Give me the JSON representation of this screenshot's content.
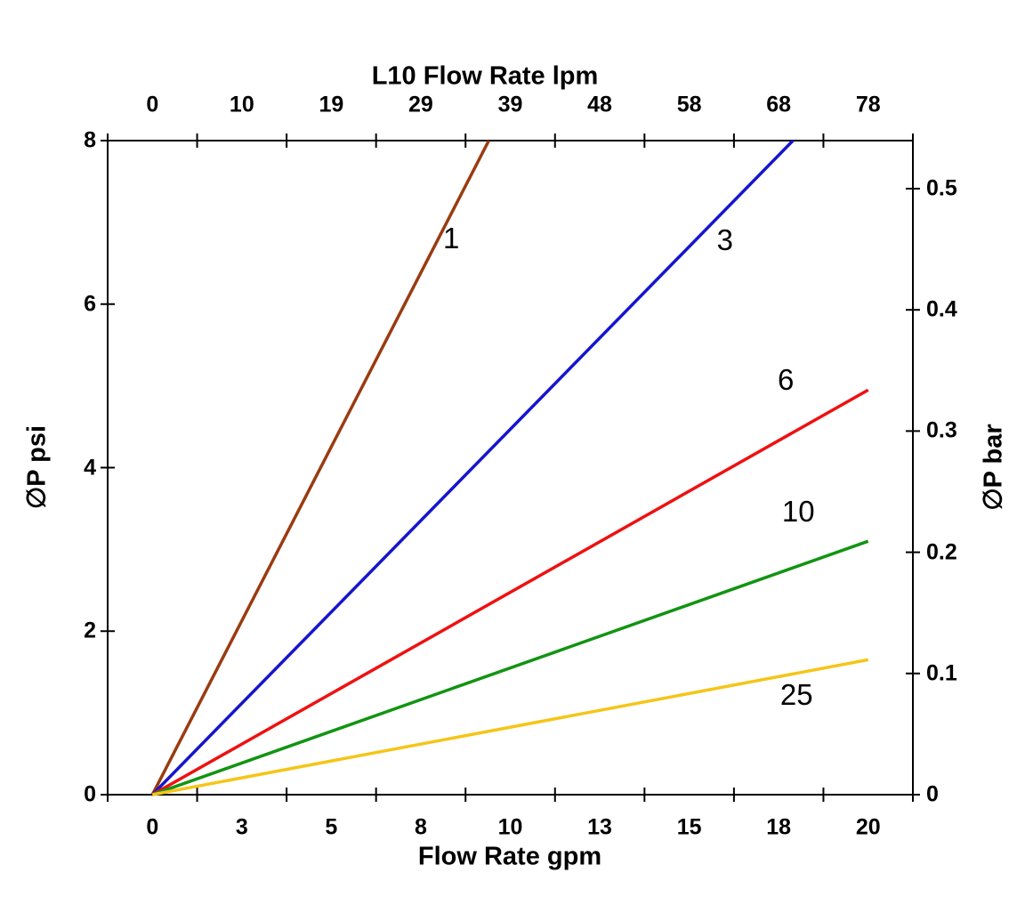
{
  "chart_data": {
    "type": "line",
    "description": "Pressure drop versus flow rate curves for five filter element micron ratings",
    "grid": false,
    "legend_position": "labels-on-lines",
    "top_axis": {
      "title": "L10 Flow Rate lpm",
      "unit": "lpm",
      "tick_labels": [
        "0",
        "10",
        "19",
        "29",
        "39",
        "48",
        "58",
        "68",
        "78"
      ]
    },
    "bottom_axis": {
      "title": "Flow Rate gpm",
      "unit": "gpm",
      "tick_labels": [
        "0",
        "3",
        "5",
        "8",
        "10",
        "13",
        "15",
        "18",
        "20"
      ],
      "tick_values_gpm": [
        0,
        2.5,
        5,
        7.5,
        10,
        12.5,
        15,
        17.5,
        20
      ],
      "range_gpm": [
        0,
        20
      ]
    },
    "left_axis": {
      "title": "∅P psi",
      "unit": "psi",
      "tick_labels": [
        "0",
        "2",
        "4",
        "6",
        "8"
      ],
      "tick_values": [
        0,
        2,
        4,
        6,
        8
      ],
      "range": [
        0,
        8
      ]
    },
    "right_axis": {
      "title": "∅P bar",
      "unit": "bar",
      "tick_labels": [
        "0",
        "0.1",
        "0.2",
        "0.3",
        "0.4",
        "0.5"
      ],
      "tick_values": [
        0,
        0.1,
        0.2,
        0.3,
        0.4,
        0.5
      ],
      "range": [
        0,
        0.54
      ]
    },
    "series": [
      {
        "name": "1",
        "color": "#9A3B10",
        "points_gpm_psi": [
          [
            0,
            0
          ],
          [
            9.4,
            8.0
          ]
        ],
        "slope_psi_per_gpm": 0.85,
        "label_at_gpm_psi": [
          8.35,
          6.8
        ]
      },
      {
        "name": "3",
        "color": "#1515CE",
        "points_gpm_psi": [
          [
            0,
            0
          ],
          [
            17.9,
            8.0
          ]
        ],
        "slope_psi_per_gpm": 0.447,
        "label_at_gpm_psi": [
          16.0,
          6.78
        ]
      },
      {
        "name": "6",
        "color": "#EE1111",
        "points_gpm_psi": [
          [
            0,
            0
          ],
          [
            20,
            4.95
          ]
        ],
        "slope_psi_per_gpm": 0.248,
        "label_at_gpm_psi": [
          17.7,
          5.07
        ]
      },
      {
        "name": "10",
        "color": "#129412",
        "points_gpm_psi": [
          [
            0,
            0
          ],
          [
            20,
            3.1
          ]
        ],
        "slope_psi_per_gpm": 0.155,
        "label_at_gpm_psi": [
          18.05,
          3.46
        ]
      },
      {
        "name": "25",
        "color": "#F5C518",
        "points_gpm_psi": [
          [
            0,
            0
          ],
          [
            20,
            1.65
          ]
        ],
        "slope_psi_per_gpm": 0.083,
        "label_at_gpm_psi": [
          18.0,
          1.22
        ]
      }
    ]
  }
}
